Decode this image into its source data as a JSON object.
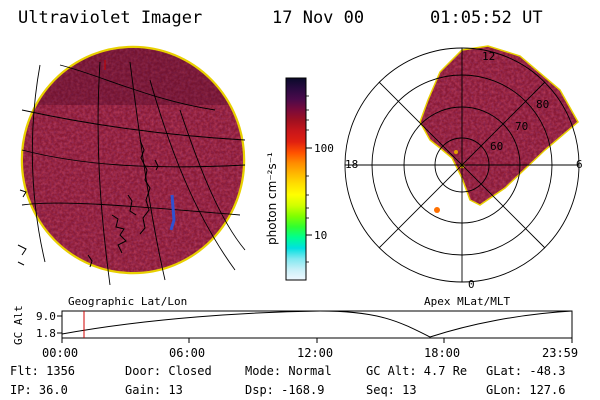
{
  "header": {
    "title": "Ultraviolet Imager",
    "date": "17 Nov 00",
    "time": "01:05:52 UT"
  },
  "left_panel": {
    "label": "Geographic Lat/Lon"
  },
  "right_panel": {
    "label": "Apex MLat/MLT",
    "mlt_labels": [
      "12",
      "18",
      "6",
      "0"
    ],
    "lat_labels": [
      "80",
      "70",
      "60"
    ]
  },
  "colorbar": {
    "unit_label": "photon cm⁻²s⁻¹",
    "ticks": [
      "100",
      "10"
    ],
    "colors": [
      "#0a0a2a",
      "#2a0a40",
      "#4a0a4a",
      "#7a0a3a",
      "#a01020",
      "#c8161a",
      "#e02010",
      "#ff5000",
      "#ff8c00",
      "#ffb800",
      "#ffe000",
      "#ffff00",
      "#d0ff00",
      "#80ff00",
      "#30ff30",
      "#00ff90",
      "#00e0e0",
      "#80e8f0",
      "#c8f0f8",
      "#f0f8ff"
    ]
  },
  "altitude_plot": {
    "ylabel": "GC Alt",
    "yticks": [
      "9.0",
      "1.8"
    ],
    "xticks": [
      "00:00",
      "06:00",
      "12:00",
      "18:00",
      "23:59"
    ]
  },
  "info": {
    "flt": "Flt: 1356",
    "door": "Door: Closed",
    "mode": "Mode: Normal",
    "gc_alt": "GC Alt: 4.7 Re",
    "glat": "GLat: -48.3",
    "ip": "IP: 36.0",
    "gain": "Gain: 13",
    "dsp": "Dsp: -168.9",
    "seq": "Seq: 13",
    "glon": "GLon: 127.6"
  },
  "image_colors": {
    "base": "#8a1a34",
    "rim": "#e8d000",
    "dark": "#4a0a28",
    "bright": "#c82a3a"
  }
}
